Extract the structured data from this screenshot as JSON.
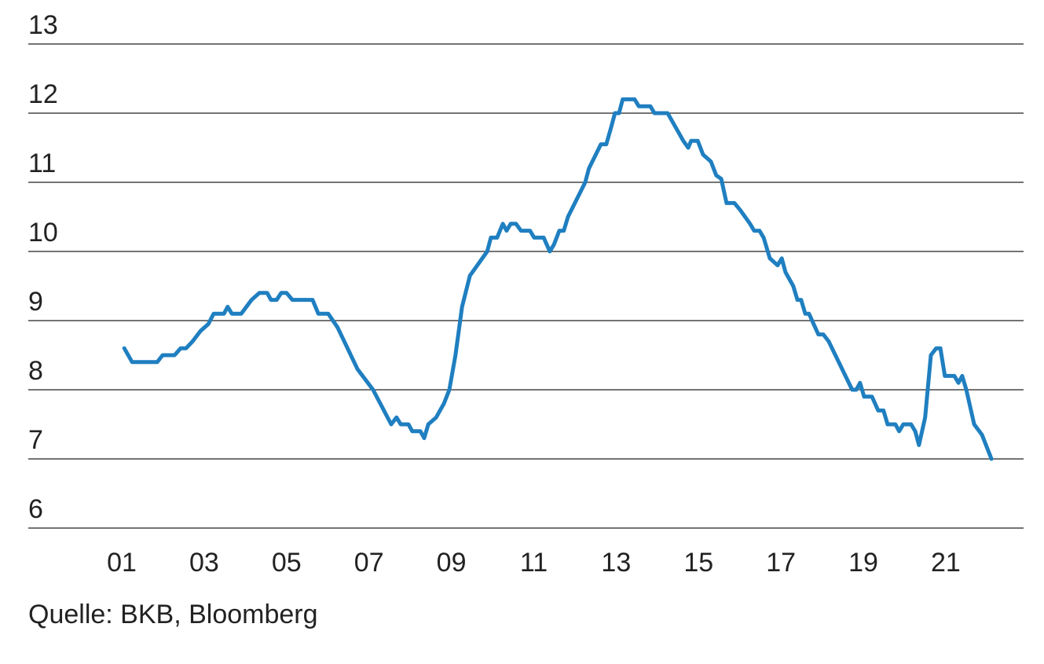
{
  "chart_data": {
    "type": "line",
    "source": "Quelle: BKB, Bloomberg",
    "color": "#1f7fc0",
    "grid": true,
    "xlim": [
      -1.27,
      22.89
    ],
    "ylim": [
      6,
      13
    ],
    "yticks": [
      6,
      7,
      8,
      9,
      10,
      11,
      12,
      13
    ],
    "xticks": [
      {
        "value": 1,
        "label": "01"
      },
      {
        "value": 3,
        "label": "03"
      },
      {
        "value": 5,
        "label": "05"
      },
      {
        "value": 7,
        "label": "07"
      },
      {
        "value": 9,
        "label": "09"
      },
      {
        "value": 11,
        "label": "11"
      },
      {
        "value": 13,
        "label": "13"
      },
      {
        "value": 15,
        "label": "15"
      },
      {
        "value": 17,
        "label": "17"
      },
      {
        "value": 19,
        "label": "19"
      },
      {
        "value": 21,
        "label": "21"
      }
    ],
    "x": [
      1.06,
      1.25,
      1.86,
      1.99,
      2.28,
      2.43,
      2.56,
      2.72,
      2.91,
      3.1,
      3.23,
      3.48,
      3.57,
      3.67,
      3.9,
      4.15,
      4.34,
      4.53,
      4.62,
      4.76,
      4.87,
      5.0,
      5.14,
      5.63,
      5.77,
      6.01,
      6.24,
      6.72,
      7.1,
      7.54,
      7.67,
      7.77,
      7.96,
      8.05,
      8.25,
      8.34,
      8.44,
      8.63,
      8.82,
      8.95,
      9.1,
      9.26,
      9.45,
      9.87,
      9.96,
      10.11,
      10.25,
      10.34,
      10.44,
      10.57,
      10.69,
      10.91,
      11.01,
      11.24,
      11.39,
      11.49,
      11.62,
      11.73,
      11.83,
      12.25,
      12.34,
      12.63,
      12.76,
      12.88,
      12.97,
      13.07,
      13.16,
      13.45,
      13.55,
      13.83,
      13.93,
      14.25,
      14.63,
      14.75,
      14.82,
      14.98,
      15.11,
      15.3,
      15.43,
      15.55,
      15.68,
      15.87,
      16.01,
      16.25,
      16.35,
      16.48,
      16.58,
      16.73,
      16.92,
      17.02,
      17.11,
      17.3,
      17.4,
      17.49,
      17.59,
      17.68,
      17.91,
      18.03,
      18.16,
      18.73,
      18.83,
      18.92,
      19.02,
      19.21,
      19.36,
      19.49,
      19.59,
      19.78,
      19.87,
      19.97,
      20.16,
      20.26,
      20.35,
      20.5,
      20.64,
      20.77,
      20.87,
      20.98,
      21.21,
      21.31,
      21.4,
      21.5,
      21.69,
      21.88,
      22.11
    ],
    "values": [
      8.6,
      8.4,
      8.4,
      8.5,
      8.5,
      8.6,
      8.6,
      8.7,
      8.85,
      8.95,
      9.1,
      9.1,
      9.2,
      9.1,
      9.1,
      9.3,
      9.4,
      9.4,
      9.3,
      9.3,
      9.4,
      9.4,
      9.3,
      9.3,
      9.1,
      9.1,
      8.9,
      8.3,
      8.0,
      7.5,
      7.6,
      7.5,
      7.5,
      7.4,
      7.4,
      7.3,
      7.5,
      7.6,
      7.8,
      8.0,
      8.5,
      9.2,
      9.65,
      10.0,
      10.2,
      10.2,
      10.4,
      10.3,
      10.4,
      10.4,
      10.3,
      10.3,
      10.2,
      10.2,
      10.0,
      10.1,
      10.3,
      10.3,
      10.5,
      11.0,
      11.2,
      11.55,
      11.55,
      11.8,
      12.0,
      12.0,
      12.2,
      12.2,
      12.1,
      12.1,
      12.0,
      12.0,
      11.6,
      11.5,
      11.6,
      11.6,
      11.4,
      11.3,
      11.1,
      11.05,
      10.7,
      10.7,
      10.6,
      10.4,
      10.3,
      10.3,
      10.2,
      9.9,
      9.8,
      9.9,
      9.7,
      9.5,
      9.3,
      9.3,
      9.1,
      9.1,
      8.8,
      8.8,
      8.7,
      8.0,
      8.0,
      8.1,
      7.9,
      7.9,
      7.7,
      7.7,
      7.5,
      7.5,
      7.4,
      7.5,
      7.5,
      7.4,
      7.2,
      7.6,
      8.5,
      8.6,
      8.6,
      8.2,
      8.2,
      8.1,
      8.2,
      8.0,
      7.5,
      7.35,
      7.0
    ]
  }
}
